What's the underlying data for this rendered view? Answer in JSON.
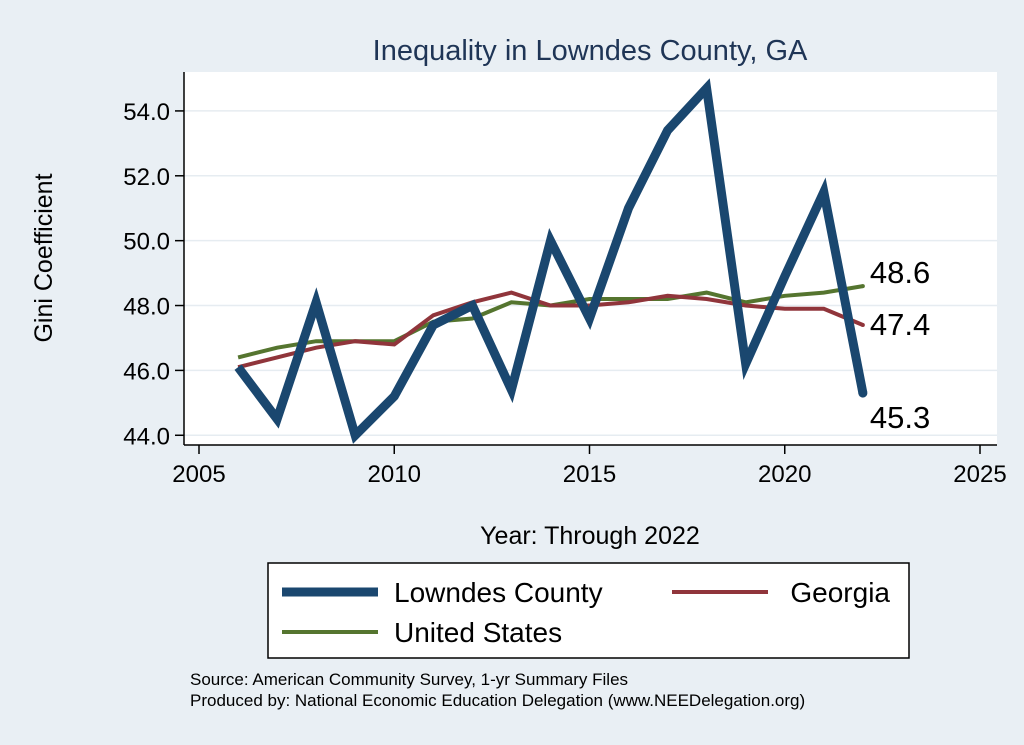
{
  "chart_data": {
    "type": "line",
    "title": "Inequality in Lowndes County, GA",
    "xlabel": "Year: Through 2022",
    "ylabel": "Gini Coefficient",
    "xlim": [
      2005,
      2025
    ],
    "ylim": [
      43.7,
      55.2
    ],
    "xticks": [
      2005,
      2010,
      2015,
      2020,
      2025
    ],
    "yticks": [
      44.0,
      46.0,
      48.0,
      50.0,
      52.0,
      54.0
    ],
    "ytick_labels": [
      "44.0",
      "46.0",
      "48.0",
      "50.0",
      "52.0",
      "54.0"
    ],
    "grid": true,
    "x": [
      2006,
      2007,
      2008,
      2009,
      2010,
      2011,
      2012,
      2013,
      2014,
      2015,
      2016,
      2017,
      2018,
      2019,
      2020,
      2021,
      2022
    ],
    "series": [
      {
        "name": "Lowndes County",
        "color": "#1a476f",
        "values": [
          46.1,
          44.5,
          48.1,
          44.0,
          45.2,
          47.4,
          48.0,
          45.4,
          50.0,
          47.6,
          51.0,
          53.4,
          54.7,
          46.2,
          48.9,
          51.5,
          45.3
        ],
        "end_label": "45.3"
      },
      {
        "name": "Georgia",
        "color": "#90353b",
        "values": [
          46.1,
          46.4,
          46.7,
          46.9,
          46.8,
          47.7,
          48.1,
          48.4,
          48.0,
          48.0,
          48.1,
          48.3,
          48.2,
          48.0,
          47.9,
          47.9,
          47.4
        ],
        "end_label": "47.4"
      },
      {
        "name": "United States",
        "color": "#55752f",
        "values": [
          46.4,
          46.7,
          46.9,
          46.9,
          46.9,
          47.5,
          47.6,
          48.1,
          48.0,
          48.2,
          48.2,
          48.2,
          48.4,
          48.1,
          48.3,
          48.4,
          48.6
        ],
        "end_label": "48.6"
      }
    ],
    "legend_position": "bottom"
  },
  "source_lines": [
    "Source: American Community Survey, 1-yr Summary Files",
    "Produced by: National Economic Education Delegation (www.NEEDelegation.org)"
  ]
}
